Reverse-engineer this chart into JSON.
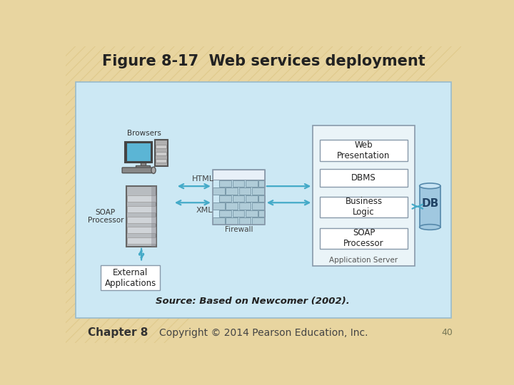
{
  "title": "Figure 8-17  Web services deployment",
  "source_text": "Source: Based on Newcomer (2002).",
  "footer_left": "Chapter 8",
  "footer_right": "Copyright © 2014 Pearson Education, Inc.",
  "footer_number": "40",
  "bg_outer": "#e8d5a0",
  "bg_inner": "#cce8f4",
  "box_fill": "#ffffff",
  "box_edge": "#8899aa",
  "arrow_color": "#44aac8",
  "app_server_box": "#eaf4f8",
  "db_fill": "#a0c8e0",
  "firewall_brick_light": "#b8d4e8",
  "firewall_brick_dark": "#8aaabb",
  "firewall_top": "#e8f0f8"
}
